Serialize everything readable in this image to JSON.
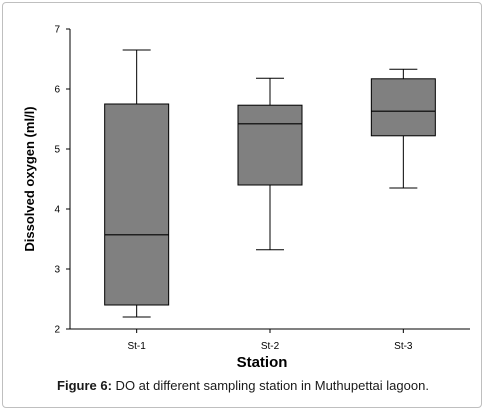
{
  "figure": {
    "label": "Figure 6:",
    "caption": " DO at different sampling station in Muthupettai lagoon."
  },
  "chart_data": {
    "type": "box",
    "title": "",
    "xlabel": "Station",
    "ylabel": "Dissolved oxygen (ml/l)",
    "ylim": [
      2,
      7
    ],
    "yticks": [
      "2",
      "3",
      "4",
      "5",
      "6",
      "7"
    ],
    "categories": [
      "St-1",
      "St-2",
      "St-3"
    ],
    "boxes": [
      {
        "category": "St-1",
        "min": 2.2,
        "q1": 2.4,
        "median": 3.57,
        "q3": 5.75,
        "max": 6.65
      },
      {
        "category": "St-2",
        "min": 3.32,
        "q1": 4.4,
        "median": 5.42,
        "q3": 5.73,
        "max": 6.18
      },
      {
        "category": "St-3",
        "min": 4.35,
        "q1": 5.22,
        "median": 5.63,
        "q3": 6.17,
        "max": 6.33
      }
    ],
    "box_fill": "#808080",
    "line_color": "#000000",
    "grid": false
  }
}
